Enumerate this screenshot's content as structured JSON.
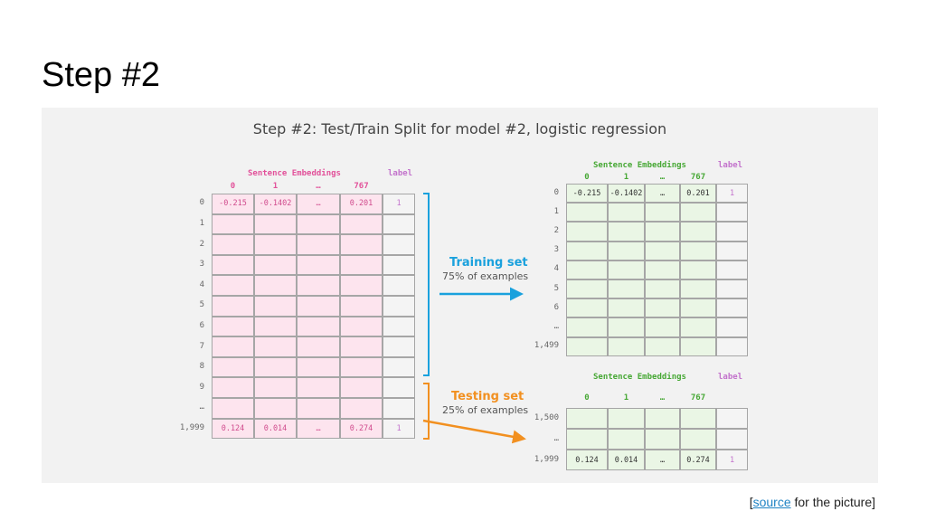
{
  "slide_title": "Step #2",
  "figure": {
    "title": "Step #2: Test/Train Split for model #2, logistic regression",
    "header_group": "Sentence Embeddings",
    "header_label": "label",
    "col_headers": [
      "0",
      "1",
      "…",
      "767"
    ],
    "full_table": {
      "row_labels": [
        "0",
        "1",
        "2",
        "3",
        "4",
        "5",
        "6",
        "7",
        "8",
        "9",
        "…",
        "1,999"
      ],
      "first_row": [
        "-0.215",
        "-0.1402",
        "…",
        "0.201",
        "1"
      ],
      "last_row": [
        "0.124",
        "0.014",
        "…",
        "0.274",
        "1"
      ]
    },
    "training_set": {
      "title": "Training set",
      "subtitle": "75% of examples",
      "row_labels": [
        "0",
        "1",
        "2",
        "3",
        "4",
        "5",
        "6",
        "…",
        "1,499"
      ],
      "first_row": [
        "-0.215",
        "-0.1402",
        "…",
        "0.201",
        "1"
      ]
    },
    "testing_set": {
      "title": "Testing set",
      "subtitle": "25% of examples",
      "row_labels": [
        "1,500",
        "…",
        "1,999"
      ],
      "last_row": [
        "0.124",
        "0.014",
        "…",
        "0.274",
        "1"
      ]
    },
    "colors": {
      "pink_cell": "#fde4ee",
      "green_cell": "#eaf6e5",
      "training_accent": "#1aa1dd",
      "testing_accent": "#f29020"
    }
  },
  "caption": {
    "prefix": "[",
    "link_text": "source",
    "suffix": " for the picture]"
  }
}
